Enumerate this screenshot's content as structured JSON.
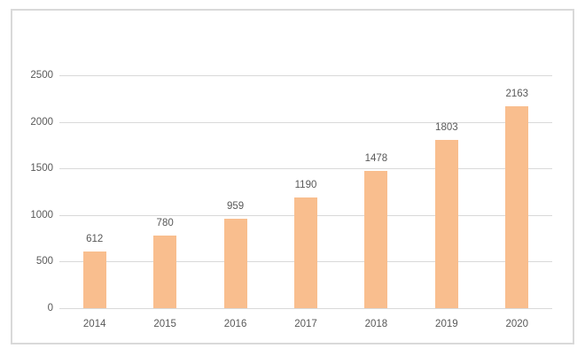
{
  "chart_data": {
    "type": "bar",
    "title": "",
    "xlabel": "",
    "ylabel": "",
    "categories": [
      "2014",
      "2015",
      "2016",
      "2017",
      "2018",
      "2019",
      "2020"
    ],
    "values": [
      612,
      780,
      959,
      1190,
      1478,
      1803,
      2163
    ],
    "data_labels": [
      "612",
      "780",
      "959",
      "1190",
      "1478",
      "1803",
      "2163"
    ],
    "yticks": [
      0,
      500,
      1000,
      1500,
      2000,
      2500
    ],
    "ytick_labels": [
      "0",
      "500",
      "1000",
      "1500",
      "2000",
      "2500"
    ],
    "ylim": [
      0,
      2500
    ],
    "grid": true,
    "legend": false,
    "colors": {
      "bar_fill": "#F9BE8E",
      "gridline": "#D9D9D9",
      "axis_line": "#D9D9D9",
      "frame_border": "#D9D9D9",
      "axis_label_text": "#595959",
      "data_label_text": "#595959",
      "background": "#FFFFFF"
    }
  }
}
